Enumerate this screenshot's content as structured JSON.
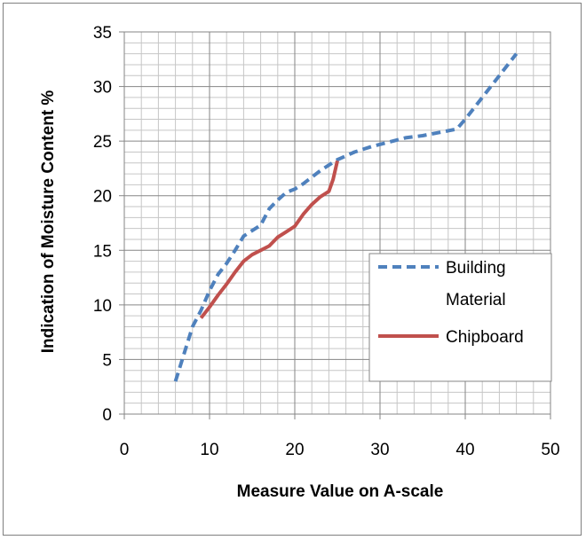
{
  "chart_data": {
    "type": "line",
    "title": "",
    "xlabel": "Measure Value on A-scale",
    "ylabel": "Indication of Moisture Content %",
    "xlim": [
      0,
      50
    ],
    "ylim": [
      0,
      35
    ],
    "x_ticks": [
      "0",
      "10",
      "20",
      "30",
      "40",
      "50"
    ],
    "y_ticks": [
      "0",
      "5",
      "10",
      "15",
      "20",
      "25",
      "30",
      "35"
    ],
    "grid": true,
    "legend_position": "right",
    "series": [
      {
        "name": "Building Material",
        "color": "#4f81bd",
        "style": "dashed",
        "x": [
          6,
          7,
          8,
          9,
          10,
          11,
          12,
          13,
          14,
          15,
          16,
          17,
          18,
          19,
          20,
          21,
          22,
          23,
          24,
          25,
          27,
          29,
          31,
          33,
          35,
          37,
          39,
          40,
          42,
          44,
          46
        ],
        "y": [
          3,
          5.5,
          8,
          9.5,
          11.3,
          12.8,
          13.8,
          15,
          16.3,
          16.8,
          17.3,
          18.8,
          19.6,
          20.3,
          20.6,
          21.1,
          21.7,
          22.3,
          22.8,
          23.3,
          24,
          24.5,
          24.9,
          25.3,
          25.5,
          25.8,
          26.1,
          27,
          29,
          31,
          33
        ]
      },
      {
        "name": "Chipboard",
        "color": "#c0504d",
        "style": "solid",
        "x": [
          9,
          10,
          11,
          12,
          13,
          14,
          15,
          16,
          17,
          18,
          19,
          20,
          21,
          22,
          23,
          24,
          24.5,
          25
        ],
        "y": [
          8.8,
          9.8,
          10.9,
          11.9,
          13,
          14,
          14.6,
          15,
          15.4,
          16.2,
          16.7,
          17.2,
          18.3,
          19.2,
          19.9,
          20.4,
          21.5,
          23.2
        ]
      }
    ]
  }
}
